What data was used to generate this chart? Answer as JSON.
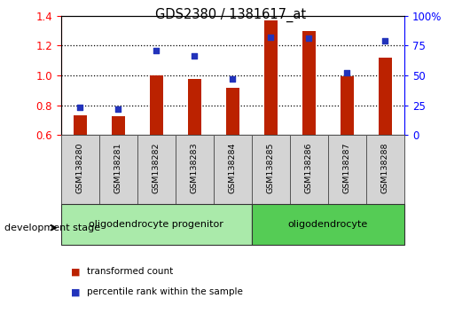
{
  "title": "GDS2380 / 1381617_at",
  "samples": [
    "GSM138280",
    "GSM138281",
    "GSM138282",
    "GSM138283",
    "GSM138284",
    "GSM138285",
    "GSM138286",
    "GSM138287",
    "GSM138288"
  ],
  "transformed_count": [
    0.735,
    0.725,
    1.0,
    0.975,
    0.915,
    1.37,
    1.3,
    0.995,
    1.12
  ],
  "percentile_rank": [
    23,
    22,
    71,
    66,
    47,
    82,
    81,
    52,
    79
  ],
  "ylim_left": [
    0.6,
    1.4
  ],
  "ylim_right": [
    0,
    100
  ],
  "yticks_left": [
    0.6,
    0.8,
    1.0,
    1.2,
    1.4
  ],
  "yticks_right": [
    0,
    25,
    50,
    75,
    100
  ],
  "yticklabels_right": [
    "0",
    "25",
    "50",
    "75",
    "100%"
  ],
  "bar_color": "#bb2200",
  "dot_color": "#2233bb",
  "groups": [
    {
      "label": "oligodendrocyte progenitor",
      "start": 0,
      "end": 4,
      "color": "#aaeaaa"
    },
    {
      "label": "oligodendrocyte",
      "start": 5,
      "end": 8,
      "color": "#55cc55"
    }
  ],
  "dev_stage_label": "development stage",
  "legend_items": [
    {
      "label": "transformed count",
      "color": "#bb2200"
    },
    {
      "label": "percentile rank within the sample",
      "color": "#2233bb"
    }
  ],
  "plot_bg": "white",
  "tick_bg": "#d4d4d4",
  "bar_width": 0.35
}
